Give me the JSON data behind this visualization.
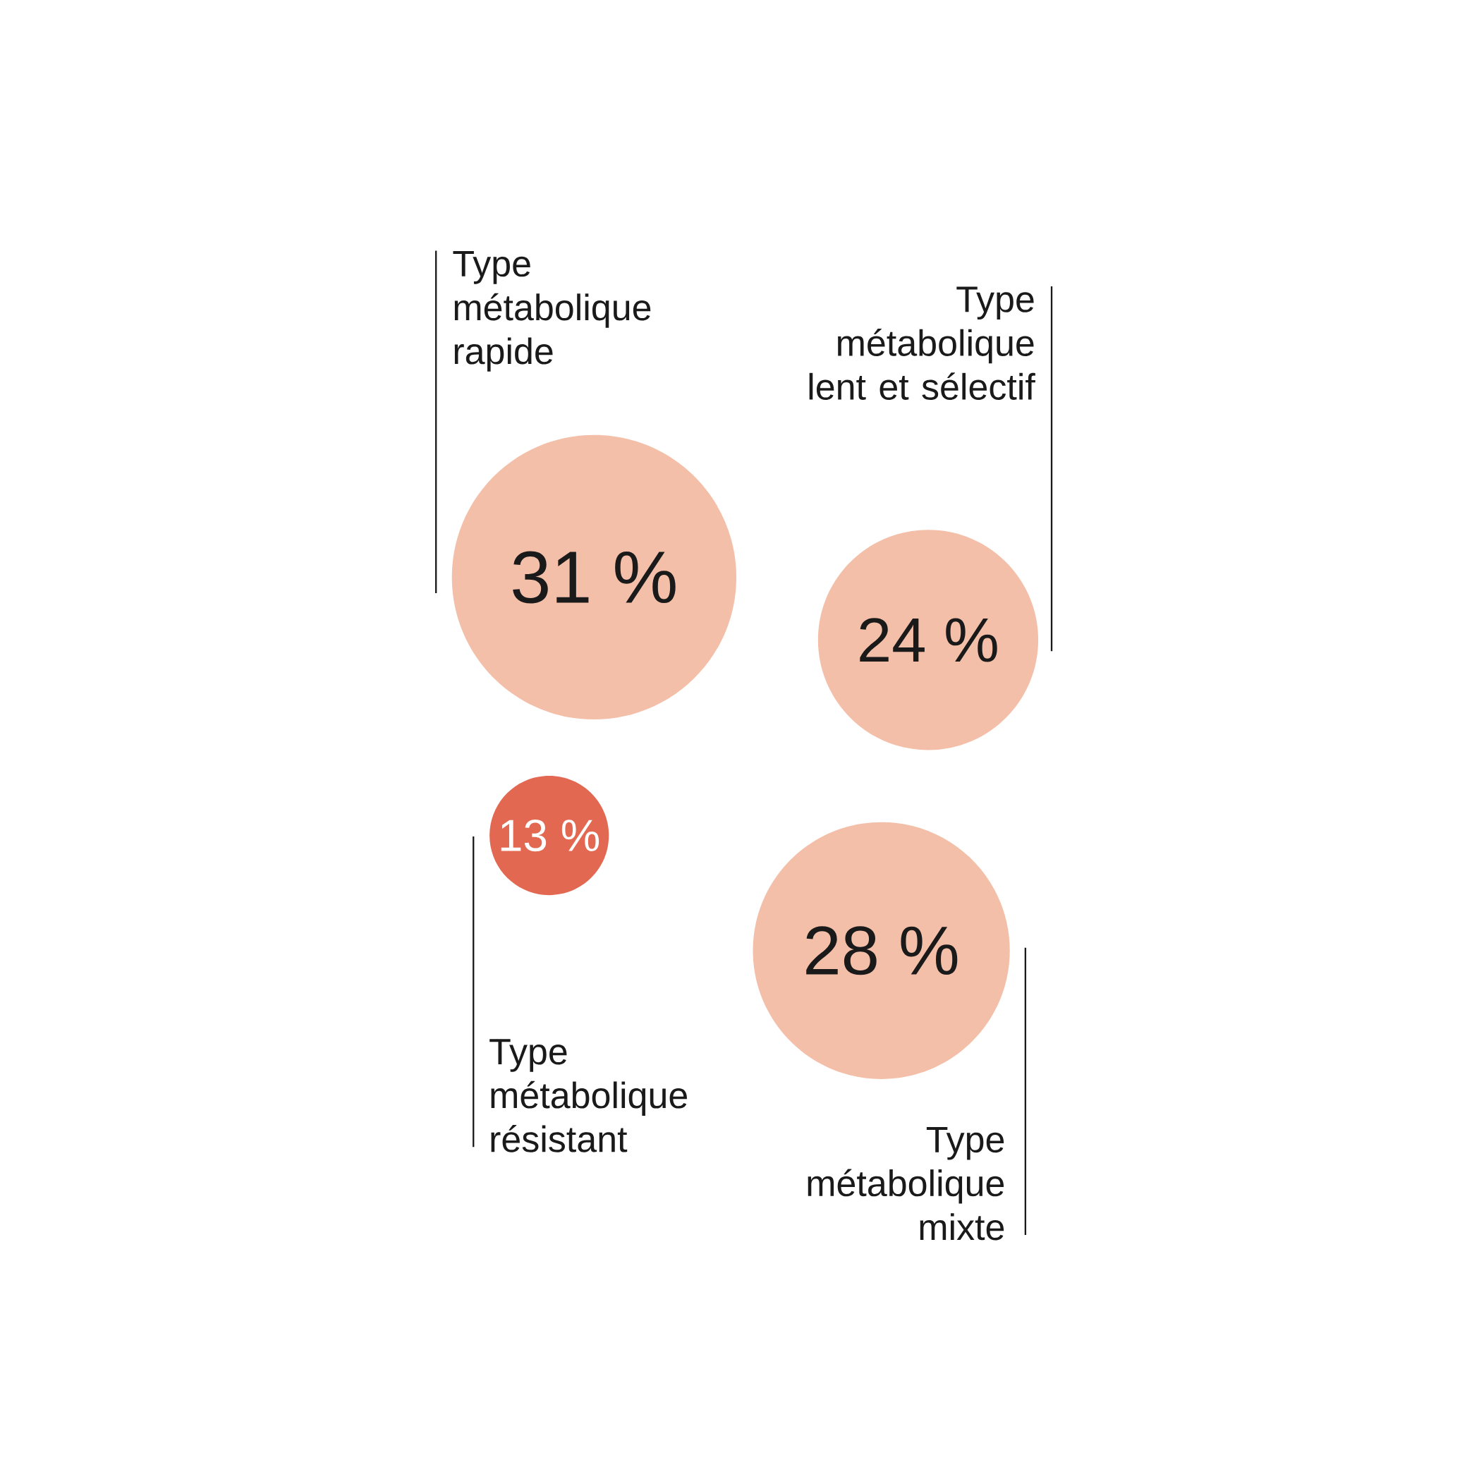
{
  "chart_data": {
    "type": "other",
    "categories": [
      "Type métabolique rapide",
      "Type métabolique lent et sélectif",
      "Type métabolique résistant",
      "Type métabolique mixte"
    ],
    "values": [
      31,
      24,
      13,
      28
    ],
    "value_labels": [
      "31 %",
      "24 %",
      "13 %",
      "28 %"
    ],
    "colors": [
      "#f4bfa8",
      "#f4bfa8",
      "#e26852",
      "#f4bfa8"
    ]
  }
}
